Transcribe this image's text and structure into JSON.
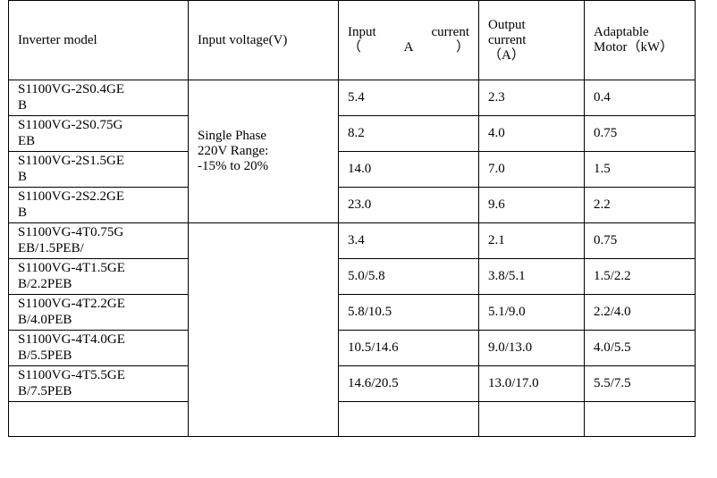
{
  "table": {
    "headers": {
      "model": "Inverter model",
      "voltage": "Input voltage(V)",
      "input_current": "Input      current\n（A）",
      "output_current": "Output\ncurrent\n（A）",
      "motor": "Adaptable\nMotor（kW）"
    },
    "single_phase_voltage": "Single Phase\n220V Range:\n-15% to 20%",
    "rows": [
      {
        "model": "S1100VG-2S0.4GE\nB",
        "input": "5.4",
        "output": "2.3",
        "motor": "0.4"
      },
      {
        "model": "S1100VG-2S0.75G\nEB",
        "input": "8.2",
        "output": "4.0",
        "motor": "0.75"
      },
      {
        "model": "S1100VG-2S1.5GE\nB",
        "input": "14.0",
        "output": "7.0",
        "motor": "1.5"
      },
      {
        "model": "S1100VG-2S2.2GE\nB",
        "input": "23.0",
        "output": "9.6",
        "motor": "2.2"
      },
      {
        "model": "S1100VG-4T0.75G\nEB/1.5PEB/",
        "input": "3.4",
        "output": "2.1",
        "motor": "0.75"
      },
      {
        "model": "S1100VG-4T1.5GE\nB/2.2PEB",
        "input": "5.0/5.8",
        "output": "3.8/5.1",
        "motor": "1.5/2.2"
      },
      {
        "model": "S1100VG-4T2.2GE\nB/4.0PEB",
        "input": "5.8/10.5",
        "output": "5.1/9.0",
        "motor": "2.2/4.0"
      },
      {
        "model": "S1100VG-4T4.0GE\nB/5.5PEB",
        "input": "10.5/14.6",
        "output": "9.0/13.0",
        "motor": "4.0/5.5"
      },
      {
        "model": "S1100VG-4T5.5GE\nB/7.5PEB",
        "input": "14.6/20.5",
        "output": "13.0/17.0",
        "motor": "5.5/7.5"
      }
    ]
  }
}
